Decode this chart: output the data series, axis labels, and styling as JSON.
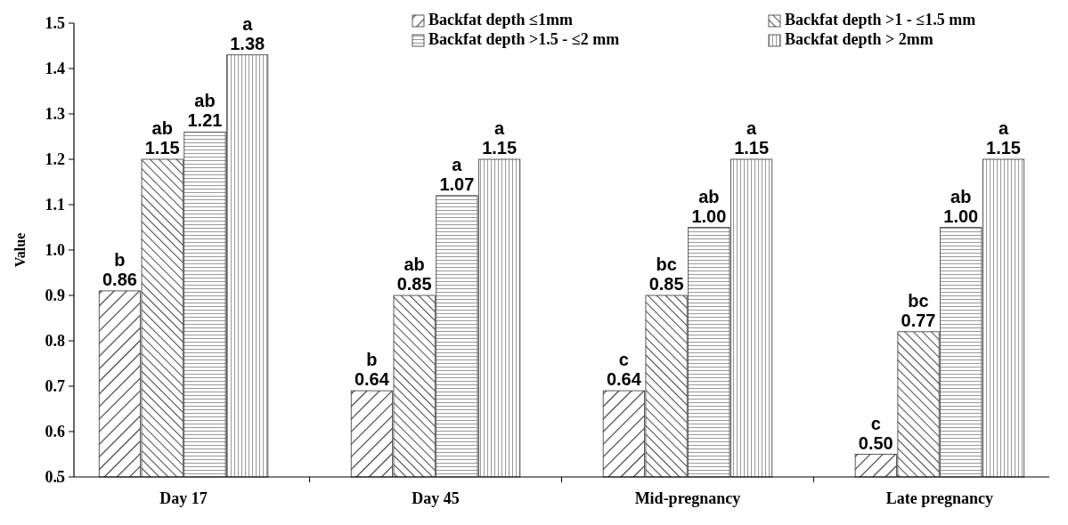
{
  "chart_data": {
    "type": "bar",
    "ylabel": "Value",
    "categories": [
      "Day 17",
      "Day 45",
      "Mid-pregnancy",
      "Late pregnancy"
    ],
    "series": [
      {
        "name": "Backfat depth ≤1mm",
        "color": "#333333",
        "values": [
          0.91,
          0.69,
          0.69,
          0.55
        ],
        "value_labels": [
          "b\n0.86",
          "b\n0.64",
          "c\n0.64",
          "c\n0.50"
        ]
      },
      {
        "name": "Backfat depth >1 - ≤1.5 mm",
        "color": "#333333",
        "values": [
          1.2,
          0.9,
          0.9,
          0.82
        ],
        "value_labels": [
          "ab\n1.15",
          "ab\n0.85",
          "bc\n0.85",
          "bc\n0.77"
        ]
      },
      {
        "name": "Backfat depth >1.5 - ≤2 mm",
        "color": "#333333",
        "values": [
          1.26,
          1.12,
          1.05,
          1.05
        ],
        "value_labels": [
          "ab\n1.21",
          "a\n1.07",
          "ab\n1.00",
          "ab\n1.00"
        ]
      },
      {
        "name": "Backfat depth >  2mm",
        "color": "#333333",
        "values": [
          1.43,
          1.2,
          1.2,
          1.2
        ],
        "value_labels": [
          "a\n1.38",
          "a\n1.15",
          "a\n1.15",
          "a\n1.15"
        ]
      }
    ],
    "ylim": [
      0.5,
      1.5
    ],
    "yticks": [
      0.5,
      0.6,
      0.7,
      0.8,
      0.9,
      {
        "value": 1,
        "label": "1.0"
      },
      1.1,
      1.2,
      1.3,
      1.4,
      1.5
    ],
    "legend": "top right"
  }
}
